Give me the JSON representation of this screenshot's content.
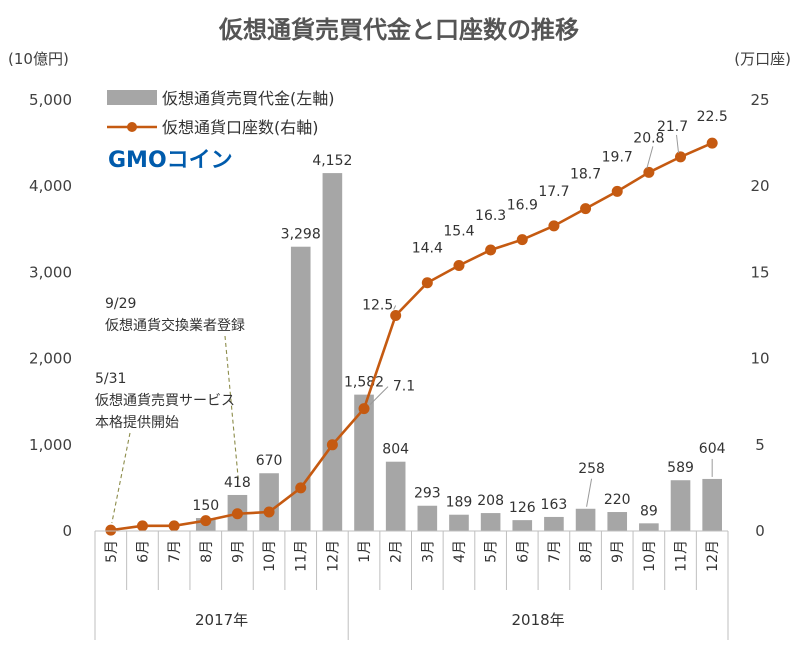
{
  "chart_data": {
    "type": "bar+line",
    "title": "仮想通貨売買代金と口座数の推移",
    "left_axis_unit": "(10億円)",
    "right_axis_unit": "(万口座)",
    "left_ticks": [
      "0",
      "1,000",
      "2,000",
      "3,000",
      "4,000",
      "5,000"
    ],
    "right_ticks": [
      "0",
      "5",
      "10",
      "15",
      "20",
      "25"
    ],
    "ylim_left": [
      0,
      5000
    ],
    "ylim_right": [
      0,
      25
    ],
    "months": [
      "5月",
      "6月",
      "7月",
      "8月",
      "9月",
      "10月",
      "11月",
      "12月",
      "1月",
      "2月",
      "3月",
      "4月",
      "5月",
      "6月",
      "7月",
      "8月",
      "9月",
      "10月",
      "11月",
      "12月"
    ],
    "years": [
      {
        "label": "2017年",
        "start": 0,
        "end": 7
      },
      {
        "label": "2018年",
        "start": 8,
        "end": 19
      }
    ],
    "series": [
      {
        "name": "仮想通貨売買代金(左軸)",
        "type": "bar",
        "axis": "left",
        "color": "#a6a6a6",
        "values": [
          null,
          null,
          null,
          150,
          418,
          670,
          3298,
          4152,
          1582,
          804,
          293,
          189,
          208,
          126,
          163,
          258,
          220,
          89,
          589,
          604
        ],
        "labels": [
          "",
          "",
          "",
          "150",
          "418",
          "670",
          "3,298",
          "4,152",
          "1,582",
          "804",
          "293",
          "189",
          "208",
          "126",
          "163",
          "258",
          "220",
          "89",
          "589",
          "604"
        ]
      },
      {
        "name": "仮想通貨口座数(右軸)",
        "type": "line",
        "axis": "right",
        "color": "#c55a11",
        "values": [
          0.05,
          0.3,
          0.3,
          0.6,
          1.0,
          1.1,
          2.5,
          5.0,
          7.1,
          12.5,
          14.4,
          15.4,
          16.3,
          16.9,
          17.7,
          18.7,
          19.7,
          20.8,
          21.7,
          22.5
        ],
        "labels": [
          "",
          "",
          "",
          "",
          "",
          "",
          "",
          "",
          "7.1",
          "12.5",
          "14.4",
          "15.4",
          "16.3",
          "16.9",
          "17.7",
          "18.7",
          "19.7",
          "20.8",
          "21.7",
          "22.5"
        ]
      }
    ],
    "annotations": [
      {
        "lines": [
          "9/29",
          "仮想通貨交換業者登録"
        ],
        "target_index": 4
      },
      {
        "lines": [
          "5/31",
          "仮想通貨売買サービス",
          "本格提供開始"
        ],
        "target_index": 0
      }
    ],
    "logo": {
      "text": "GMOコイン",
      "color": "#005bac",
      "accent": "#e60012"
    }
  }
}
